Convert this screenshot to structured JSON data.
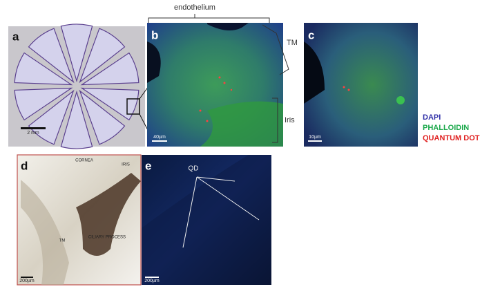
{
  "panels": [
    {
      "label": "a",
      "scale_bar": "2 mm"
    },
    {
      "label": "b",
      "scale_bar": "40µm",
      "annotations": [
        "endothelium",
        "TM",
        "Iris"
      ]
    },
    {
      "label": "c",
      "scale_bar": "10µm"
    },
    {
      "label": "d",
      "scale_bar": "200µm",
      "annotations": [
        "CORNEA",
        "IRIS",
        "CILIARY PROCESS",
        "TM"
      ]
    },
    {
      "label": "e",
      "scale_bar": "200µm",
      "annotations": [
        "QD"
      ]
    }
  ],
  "legend": [
    {
      "text": "DAPI",
      "color": "#3030a8"
    },
    {
      "text": "PHALLOIDIN",
      "color": "#1aa84a"
    },
    {
      "text": "QUANTUM DOT",
      "color": "#e02020"
    }
  ]
}
